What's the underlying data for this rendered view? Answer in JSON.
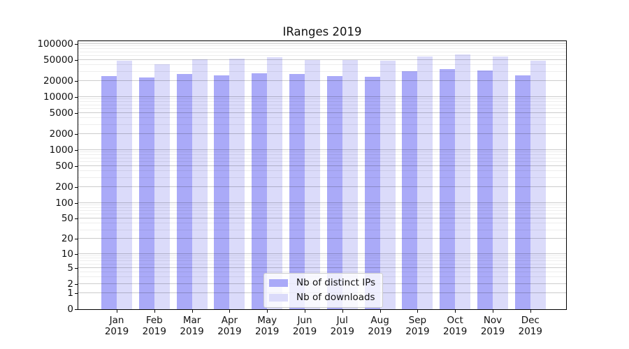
{
  "chart_data": {
    "type": "bar",
    "title": "IRanges 2019",
    "categories": [
      "Jan",
      "Feb",
      "Mar",
      "Apr",
      "May",
      "Jun",
      "Jul",
      "Aug",
      "Sep",
      "Oct",
      "Nov",
      "Dec"
    ],
    "year_label": "2019",
    "series": [
      {
        "name": "Nb of distinct IPs",
        "color": "#aaaaf8",
        "values": [
          25000,
          23300,
          26800,
          25500,
          27600,
          26800,
          24500,
          24000,
          30400,
          33000,
          31000,
          25500
        ]
      },
      {
        "name": "Nb of downloads",
        "color": "#dbdbfa",
        "values": [
          48000,
          41300,
          50400,
          52000,
          56500,
          49000,
          49500,
          47500,
          58000,
          64000,
          57000,
          47500
        ]
      }
    ],
    "xlabel": "",
    "ylabel": "",
    "y_axis": {
      "scale": "log1p",
      "max": 112000,
      "tick_values": [
        0,
        1,
        2,
        5,
        10,
        20,
        50,
        100,
        200,
        500,
        1000,
        2000,
        5000,
        10000,
        20000,
        50000,
        100000
      ],
      "tick_labels": [
        "0",
        "1",
        "2",
        "5",
        "10",
        "20",
        "50",
        "100",
        "200",
        "500",
        "1000",
        "2000",
        "5000",
        "10000",
        "20000",
        "50000",
        "100000"
      ],
      "minor_grid_values": [
        3,
        4,
        6,
        7,
        8,
        9,
        30,
        40,
        60,
        70,
        80,
        90,
        300,
        400,
        600,
        700,
        800,
        900,
        3000,
        4000,
        6000,
        7000,
        8000,
        9000,
        30000,
        40000,
        60000,
        70000,
        80000,
        90000
      ]
    },
    "grid": "horizontal major+minor, drawn over bars",
    "legend_position": "lower center"
  },
  "colors": {
    "distinct_ips_bar": "#aaaaf8",
    "downloads_bar": "#dbdbfa",
    "spine": "#000000",
    "legend_border": "#cccccc",
    "background": "#ffffff"
  }
}
